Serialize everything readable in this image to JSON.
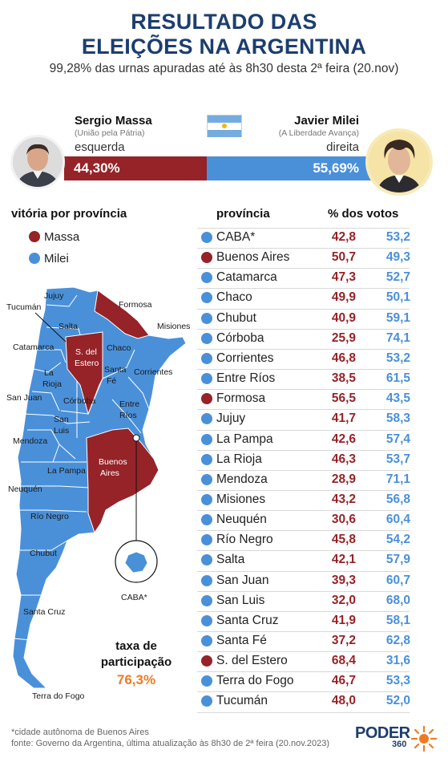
{
  "header": {
    "title_line1": "RESULTADO DAS",
    "title_line2": "ELEIÇÕES NA ARGENTINA",
    "subtitle": "99,28% das urnas apuradas até às 8h30 desta 2ª feira (20.nov)"
  },
  "candidates": {
    "massa": {
      "name": "Sergio Massa",
      "party": "(União pela Pátria)",
      "side": "esquerda",
      "result": "44,30%",
      "color": "#952328"
    },
    "milei": {
      "name": "Javier Milei",
      "party": "(A Liberdade Avança)",
      "side": "direita",
      "result": "55,69%",
      "color": "#4a90d9"
    }
  },
  "legend": {
    "title": "vitória por província",
    "items": [
      {
        "label": "Massa",
        "color": "#952328"
      },
      {
        "label": "Milei",
        "color": "#4a90d9"
      }
    ]
  },
  "table": {
    "col_province": "província",
    "col_votes": "% dos votos"
  },
  "chart_data": {
    "type": "table",
    "columns": [
      "província",
      "% dos votos (Massa)",
      "% dos votos (Milei)"
    ],
    "rows": [
      {
        "province": "CABA*",
        "massa": "42,8",
        "milei": "53,2",
        "winner": "milei"
      },
      {
        "province": "Buenos Aires",
        "massa": "50,7",
        "milei": "49,3",
        "winner": "massa"
      },
      {
        "province": "Catamarca",
        "massa": "47,3",
        "milei": "52,7",
        "winner": "milei"
      },
      {
        "province": "Chaco",
        "massa": "49,9",
        "milei": "50,1",
        "winner": "milei"
      },
      {
        "province": "Chubut",
        "massa": "40,9",
        "milei": "59,1",
        "winner": "milei"
      },
      {
        "province": "Córboba",
        "massa": "25,9",
        "milei": "74,1",
        "winner": "milei"
      },
      {
        "province": "Corrientes",
        "massa": "46,8",
        "milei": "53,2",
        "winner": "milei"
      },
      {
        "province": "Entre Ríos",
        "massa": "38,5",
        "milei": "61,5",
        "winner": "milei"
      },
      {
        "province": "Formosa",
        "massa": "56,5",
        "milei": "43,5",
        "winner": "massa"
      },
      {
        "province": "Jujuy",
        "massa": "41,7",
        "milei": "58,3",
        "winner": "milei"
      },
      {
        "province": "La Pampa",
        "massa": "42,6",
        "milei": "57,4",
        "winner": "milei"
      },
      {
        "province": "La Rioja",
        "massa": "46,3",
        "milei": "53,7",
        "winner": "milei"
      },
      {
        "province": "Mendoza",
        "massa": "28,9",
        "milei": "71,1",
        "winner": "milei"
      },
      {
        "province": "Misiones",
        "massa": "43,2",
        "milei": "56,8",
        "winner": "milei"
      },
      {
        "province": "Neuquén",
        "massa": "30,6",
        "milei": "60,4",
        "winner": "milei"
      },
      {
        "province": "Río Negro",
        "massa": "45,8",
        "milei": "54,2",
        "winner": "milei"
      },
      {
        "province": "Salta",
        "massa": "42,1",
        "milei": "57,9",
        "winner": "milei"
      },
      {
        "province": "San Juan",
        "massa": "39,3",
        "milei": "60,7",
        "winner": "milei"
      },
      {
        "province": "San Luis",
        "massa": "32,0",
        "milei": "68,0",
        "winner": "milei"
      },
      {
        "province": "Santa Cruz",
        "massa": "41,9",
        "milei": "58,1",
        "winner": "milei"
      },
      {
        "province": "Santa Fé",
        "massa": "37,2",
        "milei": "62,8",
        "winner": "milei"
      },
      {
        "province": "S. del Estero",
        "massa": "68,4",
        "milei": "31,6",
        "winner": "massa"
      },
      {
        "province": "Terra do Fogo",
        "massa": "46,7",
        "milei": "53,3",
        "winner": "milei"
      },
      {
        "province": "Tucumán",
        "massa": "48,0",
        "milei": "52,0",
        "winner": "milei"
      }
    ]
  },
  "map": {
    "labels": {
      "jujuy": "Jujuy",
      "tucuman": "Tucumán",
      "formosa": "Formosa",
      "salta": "Salta",
      "misiones": "Misiones",
      "catamarca": "Catamarca",
      "sdelestero1": "S. del",
      "sdelestero2": "Estero",
      "chaco": "Chaco",
      "larioja1": "La",
      "larioja2": "Rioja",
      "santafe1": "Santa",
      "santafe2": "Fé",
      "corrientes": "Corrientes",
      "sanjuan": "San Juan",
      "cordoba": "Córboba",
      "entrerios1": "Entre",
      "entrerios2": "Ríos",
      "sanluis1": "San",
      "sanluis2": "Luis",
      "mendoza": "Mendoza",
      "buenosaires1": "Buenos",
      "buenosaires2": "Aires",
      "lapampa": "La Pampa",
      "neuquen": "Neuquén",
      "rionegro": "Río Negro",
      "chubut": "Chubut",
      "santacruz": "Santa Cruz",
      "terradofogo": "Terra do Fogo",
      "caba": "CABA*"
    },
    "colors": {
      "milei": "#4a90d9",
      "massa": "#952328",
      "border": "#ffffff"
    }
  },
  "turnout": {
    "label_line1": "taxa de",
    "label_line2": "participação",
    "value": "76,3%"
  },
  "footer": {
    "note": "*cidade autônoma de Buenos Aires",
    "source": "fonte: Governo da Argentina, última atualização às 8h30 de 2ª feira (20.nov.2023)",
    "logo": "PODER",
    "logo_sub": "360"
  }
}
